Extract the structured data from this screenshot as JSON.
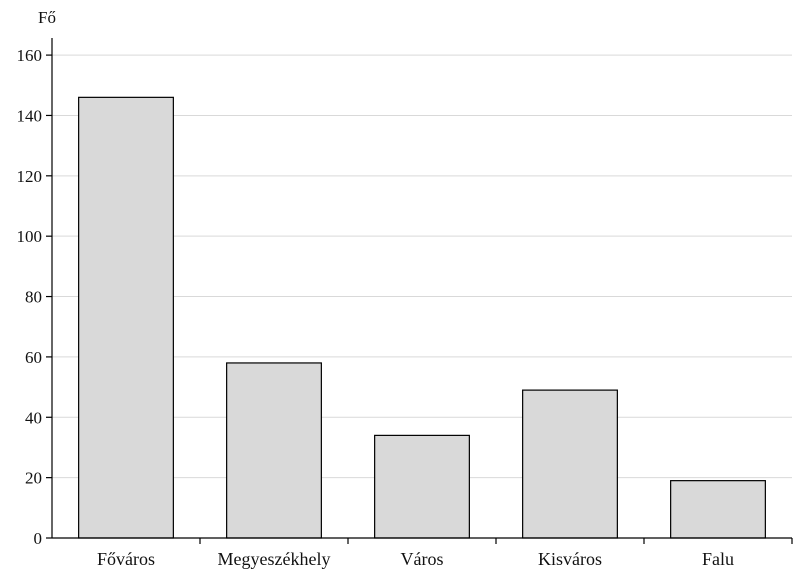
{
  "chart_data": {
    "type": "bar",
    "title": "",
    "ylabel": "Fő",
    "xlabel": "",
    "categories": [
      "Főváros",
      "Megyeszékhely",
      "Város",
      "Kisváros",
      "Falu"
    ],
    "values": [
      146,
      58,
      34,
      49,
      19
    ],
    "ylim": [
      0,
      165
    ],
    "yticks": [
      0,
      20,
      40,
      60,
      80,
      100,
      120,
      140,
      160
    ],
    "grid": true,
    "bar_color": "#d9d9d9",
    "legend": "none"
  }
}
